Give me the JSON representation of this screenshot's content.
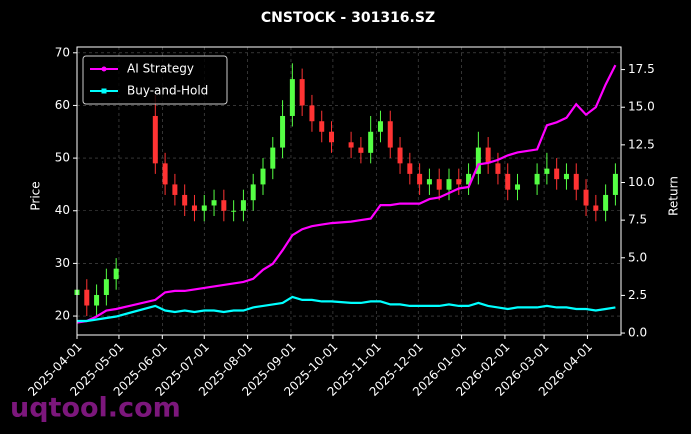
{
  "chart_data": {
    "type": "candlestick-returns",
    "title": "CNSTOCK - 301316.SZ",
    "y_label": "Price",
    "y2_label": "Return",
    "watermark": "uqtool.com",
    "x": [
      "2025-04-01",
      "2025-04-08",
      "2025-04-15",
      "2025-04-22",
      "2025-04-29",
      "2025-05-27",
      "2025-06-03",
      "2025-06-10",
      "2025-06-17",
      "2025-06-24",
      "2025-07-01",
      "2025-07-08",
      "2025-07-15",
      "2025-07-22",
      "2025-07-29",
      "2025-08-05",
      "2025-08-12",
      "2025-08-19",
      "2025-08-26",
      "2025-09-02",
      "2025-09-09",
      "2025-09-16",
      "2025-09-23",
      "2025-09-30",
      "2025-10-14",
      "2025-10-21",
      "2025-10-28",
      "2025-11-04",
      "2025-11-11",
      "2025-11-18",
      "2025-11-25",
      "2025-12-02",
      "2025-12-09",
      "2025-12-16",
      "2025-12-23",
      "2025-12-30",
      "2026-01-06",
      "2026-01-13",
      "2026-01-20",
      "2026-01-27",
      "2026-02-03",
      "2026-02-10",
      "2026-02-24",
      "2026-03-03",
      "2026-03-10",
      "2026-03-17",
      "2026-03-24",
      "2026-03-31",
      "2026-04-07",
      "2026-04-14",
      "2026-04-21"
    ],
    "open": [
      24,
      25,
      22,
      24,
      27,
      58,
      49,
      45,
      43,
      41,
      40,
      41,
      42,
      40,
      40,
      42,
      45,
      48,
      52,
      58,
      65,
      60,
      57,
      55,
      53,
      52,
      51,
      55,
      57,
      52,
      49,
      47,
      45,
      46,
      44,
      46,
      45,
      47,
      52,
      49,
      47,
      44,
      45,
      47,
      48,
      46,
      47,
      44,
      41,
      40,
      43
    ],
    "high": [
      27,
      27,
      26,
      29,
      31,
      62,
      51,
      47,
      45,
      43,
      43,
      44,
      44,
      42,
      44,
      47,
      50,
      54,
      61,
      68,
      67,
      62,
      59,
      57,
      55,
      54,
      58,
      59,
      59,
      54,
      51,
      49,
      48,
      48,
      48,
      48,
      49,
      55,
      54,
      51,
      49,
      47,
      49,
      51,
      50,
      49,
      49,
      46,
      43,
      45,
      49
    ],
    "low": [
      22,
      20,
      20,
      22,
      25,
      47,
      43,
      41,
      39,
      38,
      38,
      39,
      38,
      38,
      38,
      40,
      43,
      46,
      50,
      56,
      58,
      55,
      53,
      51,
      50,
      49,
      49,
      53,
      50,
      47,
      45,
      43,
      43,
      42,
      42,
      43,
      43,
      45,
      47,
      45,
      42,
      42,
      43,
      45,
      44,
      44,
      42,
      39,
      38,
      38,
      41
    ],
    "close": [
      25,
      22,
      24,
      27,
      29,
      49,
      45,
      43,
      41,
      40,
      41,
      42,
      40,
      40,
      42,
      45,
      48,
      52,
      58,
      65,
      60,
      57,
      55,
      53,
      52,
      51,
      55,
      57,
      52,
      49,
      47,
      45,
      46,
      44,
      46,
      45,
      47,
      52,
      49,
      47,
      44,
      45,
      47,
      48,
      46,
      47,
      44,
      41,
      40,
      43,
      47
    ],
    "up_color": "#55ff44",
    "down_color": "#ff3333",
    "series": [
      {
        "name": "AI Strategy",
        "color": "#ff00ff",
        "axis": "y2",
        "marker": "circle",
        "values": [
          0.7,
          0.8,
          1.1,
          1.5,
          1.6,
          2.2,
          2.7,
          2.8,
          2.8,
          2.9,
          3.0,
          3.1,
          3.2,
          3.3,
          3.4,
          3.6,
          4.2,
          4.6,
          5.5,
          6.5,
          6.9,
          7.1,
          7.2,
          7.3,
          7.4,
          7.5,
          7.6,
          8.5,
          8.5,
          8.6,
          8.6,
          8.6,
          8.9,
          9.0,
          9.3,
          9.6,
          9.7,
          11.2,
          11.3,
          11.5,
          11.8,
          12.0,
          12.2,
          13.8,
          14.0,
          14.3,
          15.2,
          14.5,
          15.0,
          16.5,
          17.8
        ]
      },
      {
        "name": "Buy-and-Hold",
        "color": "#00ffff",
        "axis": "y2",
        "marker": "square",
        "values": [
          0.8,
          0.8,
          0.9,
          1.0,
          1.1,
          1.8,
          1.5,
          1.4,
          1.5,
          1.4,
          1.5,
          1.5,
          1.4,
          1.5,
          1.5,
          1.7,
          1.8,
          1.9,
          2.0,
          2.4,
          2.2,
          2.2,
          2.1,
          2.1,
          2.0,
          2.0,
          2.1,
          2.1,
          1.9,
          1.9,
          1.8,
          1.8,
          1.8,
          1.8,
          1.9,
          1.8,
          1.8,
          2.0,
          1.8,
          1.7,
          1.6,
          1.7,
          1.7,
          1.8,
          1.7,
          1.7,
          1.6,
          1.6,
          1.5,
          1.6,
          1.7
        ]
      }
    ],
    "xlim": [
      "2025-04-01",
      "2026-04-25"
    ],
    "xticks": [
      "2025-04-01",
      "2025-05-01",
      "2025-06-01",
      "2025-07-01",
      "2025-08-01",
      "2025-09-01",
      "2025-10-01",
      "2025-11-01",
      "2025-12-01",
      "2026-01-01",
      "2026-02-01",
      "2026-03-01",
      "2026-04-01"
    ],
    "ylim": [
      16.4,
      71.1
    ],
    "yticks": [
      20,
      30,
      40,
      50,
      60,
      70
    ],
    "y2lim": [
      -0.13,
      19.0
    ],
    "y2ticks": [
      {
        "value": 0,
        "label": "0.0"
      },
      {
        "value": 2.5,
        "label": "2.5"
      },
      {
        "value": 5,
        "label": "5.0"
      },
      {
        "value": 7.5,
        "label": "7.5"
      },
      {
        "value": 10,
        "label": "10.0"
      },
      {
        "value": 12.5,
        "label": "12.5"
      },
      {
        "value": 15,
        "label": "15.0"
      },
      {
        "value": 17.5,
        "label": "17.5"
      }
    ],
    "grid": true,
    "legend": "upper left"
  }
}
